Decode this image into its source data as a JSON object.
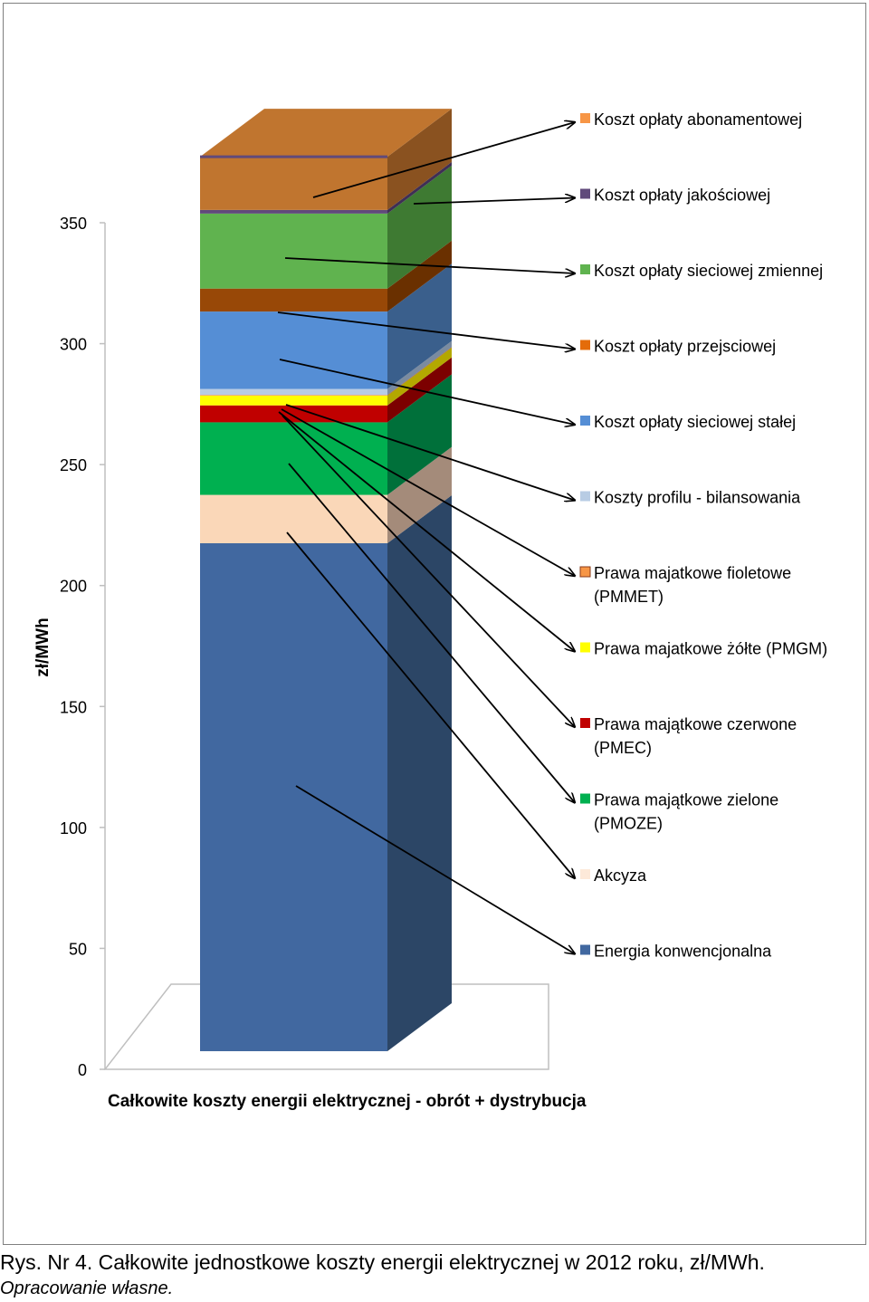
{
  "chart_data": {
    "type": "bar",
    "title": "",
    "ylabel": "zł/MWh",
    "xlabel": "",
    "ylim": [
      0,
      350
    ],
    "yticks": [
      0,
      50,
      100,
      150,
      200,
      250,
      300,
      350
    ],
    "categories": [
      "Całkowite koszty energii elektrycznej - obrót + dystrybucja"
    ],
    "series": [
      {
        "name": "Energia konwencjonalna",
        "values": [
          210
        ],
        "color": "#4168A0",
        "color_side": "#2C4666"
      },
      {
        "name": "Akcyza",
        "values": [
          20
        ],
        "color": "#FAD7B8",
        "color_side": "#A48B7A"
      },
      {
        "name": "Prawa majątkowe zielone (PMOZE)",
        "values": [
          30
        ],
        "color": "#00B050",
        "color_side": "#00703A"
      },
      {
        "name": "Prawa majątkowe czerwone (PMEC)",
        "values": [
          7
        ],
        "color": "#C00000",
        "color_side": "#7C0000"
      },
      {
        "name": "Prawa majatkowe żółte (PMGM)",
        "values": [
          4
        ],
        "color": "#FFFF00",
        "color_side": "#B3A800"
      },
      {
        "name": "Prawa majatkowe fioletowe (PMMET)",
        "values": [
          0.3
        ],
        "color": "#F79646",
        "color_side": "#A6622B"
      },
      {
        "name": "Koszty profilu - bilansowania",
        "values": [
          2.5
        ],
        "color": "#B8CCE4",
        "color_side": "#7A8BA0"
      },
      {
        "name": "Koszt opłaty sieciowej stałej",
        "values": [
          32
        ],
        "color": "#558ED5",
        "color_side": "#3A5F8C"
      },
      {
        "name": "Koszt opłaty przejsciowej",
        "values": [
          9.5
        ],
        "color": "#984807",
        "color_side": "#6A3000"
      },
      {
        "name": "Koszt opłaty sieciowej zmiennej",
        "values": [
          31
        ],
        "color": "#60B34F",
        "color_side": "#3E7A32"
      },
      {
        "name": "Koszt opłaty jakościowej",
        "values": [
          1.5
        ],
        "color": "#604A7B",
        "color_side": "#3F2F55"
      },
      {
        "name": "Koszt opłaty abonamentowej",
        "values": [
          22
        ],
        "color": "#C0752F",
        "color_side": "#8A5220"
      }
    ],
    "legend": {
      "position": "right",
      "entries": [
        {
          "label": "Koszt opłaty abonamentowej",
          "color": "#F79646"
        },
        {
          "label": "Koszt opłaty jakościowej",
          "color": "#604A7B"
        },
        {
          "label": "Koszt opłaty sieciowej zmiennej",
          "color": "#60B34F"
        },
        {
          "label": "Koszt opłaty przejsciowej",
          "color": "#E46C0A"
        },
        {
          "label": "Koszt opłaty sieciowej stałej",
          "color": "#558ED5"
        },
        {
          "label": "Koszty profilu - bilansowania",
          "color": "#B8CCE4"
        },
        {
          "label": "Prawa majatkowe fioletowe (PMMET)",
          "color": "#F79646"
        },
        {
          "label": "Prawa majatkowe żółte (PMGM)",
          "color": "#FFFF00"
        },
        {
          "label": "Prawa majątkowe czerwone (PMEC)",
          "color": "#C00000"
        },
        {
          "label": "Prawa majątkowe zielone (PMOZE)",
          "color": "#00B050"
        },
        {
          "label": "Akcyza",
          "color": "#FDE9D9"
        },
        {
          "label": "Energia konwencjonalna",
          "color": "#4168A0"
        }
      ]
    }
  },
  "caption": {
    "main": "Rys. Nr 4. Całkowite jednostkowe koszty energii elektrycznej w 2012 roku, zł/MWh.",
    "source": "Opracowanie własne."
  }
}
